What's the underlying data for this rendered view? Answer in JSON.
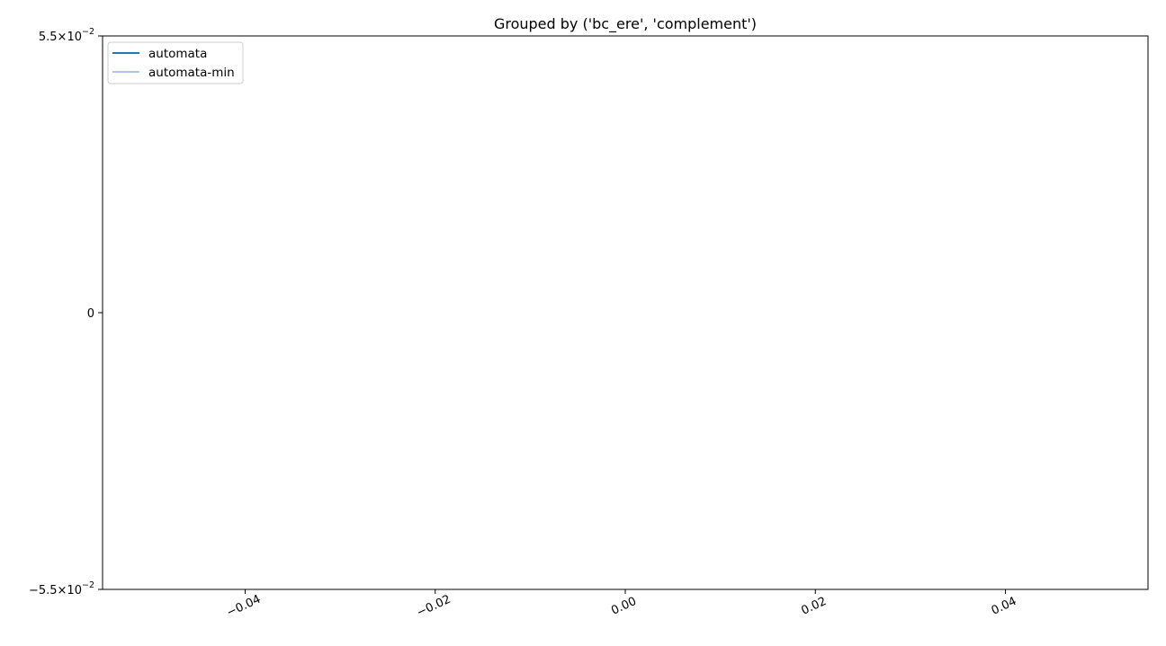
{
  "chart_data": {
    "type": "line",
    "title": "Grouped by ('bc_ere', 'complement')",
    "xlabel": "",
    "ylabel": "",
    "xlim": [
      -0.055,
      0.055
    ],
    "ylim": [
      -0.055,
      0.055
    ],
    "x_ticks": [
      {
        "value": -0.04,
        "label": "−0.04"
      },
      {
        "value": -0.02,
        "label": "−0.02"
      },
      {
        "value": 0.0,
        "label": "0.00"
      },
      {
        "value": 0.02,
        "label": "0.02"
      },
      {
        "value": 0.04,
        "label": "0.04"
      }
    ],
    "y_ticks": [
      {
        "value": 0.055,
        "label": "5.5×10",
        "exponent": "−2"
      },
      {
        "value": 0.0,
        "label": "0",
        "exponent": ""
      },
      {
        "value": -0.055,
        "label": "−5.5×10",
        "exponent": "−2"
      }
    ],
    "y_scale": "symlog",
    "grid": false,
    "legend_position": "top-left",
    "series": [
      {
        "name": "automata",
        "color": "#1f77b4",
        "x": [],
        "y": []
      },
      {
        "name": "automata-min",
        "color": "#aec7e8",
        "x": [],
        "y": []
      }
    ]
  }
}
